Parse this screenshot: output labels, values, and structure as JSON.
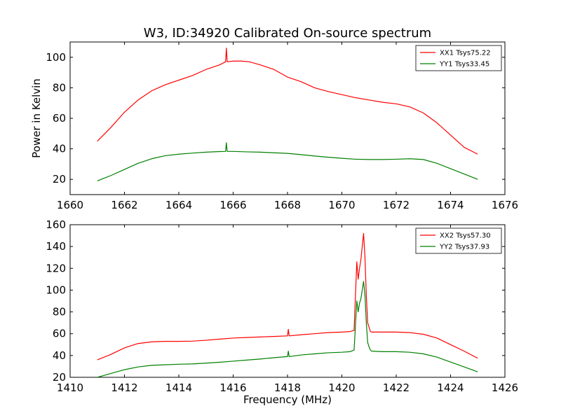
{
  "title": "W3, ID:34920 Calibrated On-source spectrum",
  "colors": {
    "xx": "#ff0000",
    "yy": "#008000"
  },
  "chart_data": [
    {
      "type": "line",
      "xlabel": "",
      "ylabel": "Power in Kelvin",
      "xlim": [
        1660,
        1676
      ],
      "ylim": [
        10,
        110
      ],
      "xticks": [
        1660,
        1662,
        1664,
        1666,
        1668,
        1670,
        1672,
        1674,
        1676
      ],
      "yticks": [
        20,
        40,
        60,
        80,
        100
      ],
      "legend_position": "top-right",
      "series": [
        {
          "name": "XX1 Tsys75.22",
          "color": "#ff0000",
          "x": [
            1661.0,
            1661.5,
            1662.0,
            1662.5,
            1663.0,
            1663.5,
            1664.0,
            1664.5,
            1665.0,
            1665.5,
            1665.72,
            1665.75,
            1665.78,
            1666.0,
            1666.3,
            1666.6,
            1667.0,
            1667.5,
            1667.8,
            1668.0,
            1668.5,
            1669.0,
            1669.5,
            1670.0,
            1670.5,
            1671.0,
            1671.5,
            1672.0,
            1672.5,
            1673.0,
            1673.5,
            1674.0,
            1674.5,
            1675.0
          ],
          "y": [
            45,
            54,
            64,
            72,
            78,
            82,
            85,
            88,
            92,
            95,
            97,
            106,
            97,
            97.5,
            97.5,
            97,
            95,
            92,
            89,
            87,
            84,
            80,
            77.5,
            75.5,
            73.5,
            72,
            70.5,
            69.5,
            67.5,
            63.5,
            57,
            49,
            41,
            36.5
          ]
        },
        {
          "name": "YY1 Tsys33.45",
          "color": "#008000",
          "x": [
            1661.0,
            1661.5,
            1662.0,
            1662.5,
            1663.0,
            1663.5,
            1664.0,
            1664.5,
            1665.0,
            1665.5,
            1665.72,
            1665.75,
            1665.78,
            1666.0,
            1666.5,
            1667.0,
            1667.5,
            1668.0,
            1668.5,
            1669.0,
            1669.5,
            1670.0,
            1670.5,
            1671.0,
            1671.5,
            1672.0,
            1672.5,
            1673.0,
            1673.5,
            1674.0,
            1674.5,
            1675.0
          ],
          "y": [
            19,
            22.5,
            26.5,
            30.5,
            33.5,
            35.5,
            36.5,
            37.2,
            37.8,
            38.2,
            38.3,
            44,
            38.3,
            38.3,
            38,
            37.8,
            37.4,
            37,
            36.2,
            35.3,
            34.5,
            33.8,
            33.2,
            33,
            33,
            33.2,
            33.5,
            33,
            30.5,
            27,
            23.5,
            20
          ]
        }
      ]
    },
    {
      "type": "line",
      "xlabel": "Frequency (MHz)",
      "ylabel": "",
      "xlim": [
        1410,
        1426
      ],
      "ylim": [
        20,
        160
      ],
      "xticks": [
        1410,
        1412,
        1414,
        1416,
        1418,
        1420,
        1422,
        1424,
        1426
      ],
      "yticks": [
        20,
        40,
        60,
        80,
        100,
        120,
        140,
        160
      ],
      "legend_position": "top-right",
      "series": [
        {
          "name": "XX2 Tsys57.30",
          "color": "#ff0000",
          "x": [
            1411.0,
            1411.5,
            1412.0,
            1412.5,
            1413.0,
            1413.5,
            1414.0,
            1414.5,
            1415.0,
            1415.5,
            1416.0,
            1416.5,
            1417.0,
            1417.5,
            1418.0,
            1418.03,
            1418.06,
            1418.5,
            1419.0,
            1419.5,
            1420.0,
            1420.3,
            1420.45,
            1420.55,
            1420.6,
            1420.65,
            1420.7,
            1420.75,
            1420.8,
            1420.85,
            1420.9,
            1420.95,
            1421.0,
            1421.05,
            1421.1,
            1421.5,
            1422.0,
            1422.5,
            1423.0,
            1423.5,
            1424.0,
            1424.5,
            1425.0
          ],
          "y": [
            36,
            41,
            47,
            51,
            52.5,
            53,
            53,
            53.2,
            54,
            55,
            56,
            56.5,
            57,
            57.5,
            58,
            64,
            58,
            59,
            60,
            61,
            61.5,
            62,
            63,
            126,
            110,
            120,
            128,
            140,
            152,
            130,
            95,
            70,
            66,
            62,
            61.5,
            61.5,
            61.5,
            61,
            59.5,
            56,
            50,
            44,
            37.5
          ]
        },
        {
          "name": "YY2 Tsys37.93",
          "color": "#008000",
          "x": [
            1411.0,
            1411.5,
            1412.0,
            1412.5,
            1413.0,
            1413.5,
            1414.0,
            1414.5,
            1415.0,
            1415.5,
            1416.0,
            1416.5,
            1417.0,
            1417.5,
            1418.0,
            1418.03,
            1418.06,
            1418.5,
            1419.0,
            1419.5,
            1420.0,
            1420.3,
            1420.45,
            1420.55,
            1420.6,
            1420.65,
            1420.7,
            1420.75,
            1420.8,
            1420.85,
            1420.9,
            1420.95,
            1421.0,
            1421.05,
            1421.1,
            1421.5,
            1422.0,
            1422.5,
            1423.0,
            1423.5,
            1424.0,
            1424.5,
            1425.0
          ],
          "y": [
            20,
            23.5,
            27,
            29.5,
            31,
            31.5,
            32,
            32.3,
            33,
            33.8,
            34.8,
            35.8,
            36.8,
            38,
            39,
            44,
            39,
            40.5,
            41.5,
            42.5,
            43,
            43.5,
            45,
            90,
            80,
            88,
            92,
            100,
            108,
            95,
            70,
            52,
            48,
            45,
            44,
            43.5,
            43.5,
            43,
            41.5,
            38.5,
            34,
            29.5,
            25
          ]
        }
      ]
    }
  ]
}
